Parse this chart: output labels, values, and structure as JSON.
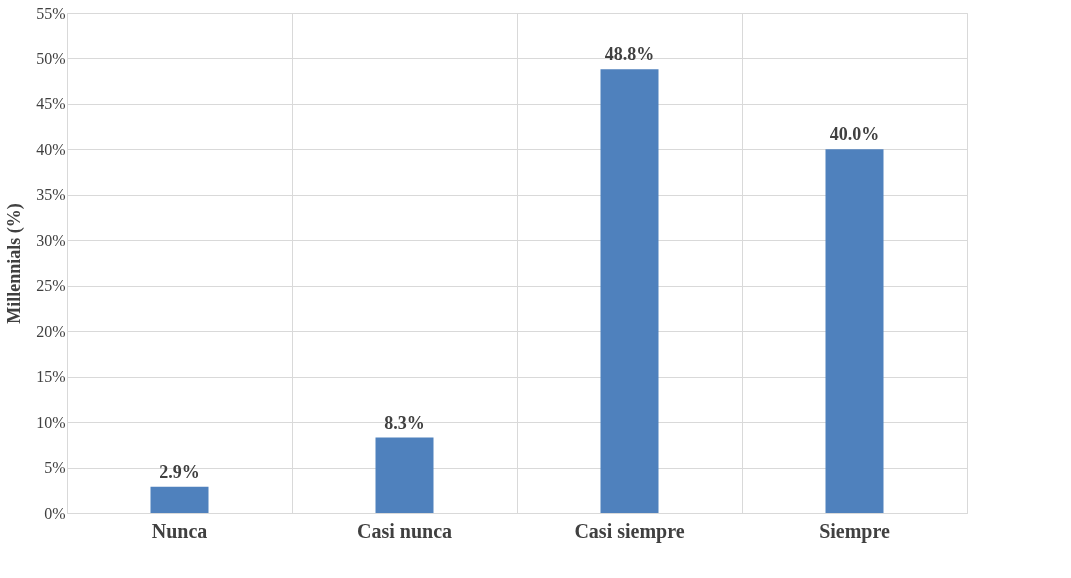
{
  "chart_data": {
    "type": "bar",
    "ylabel": "Millennials (%)",
    "categories": [
      "Nunca",
      "Casi nunca",
      "Casi siempre",
      "Siempre"
    ],
    "values": [
      2.9,
      8.3,
      48.8,
      40.0
    ],
    "color": "#4f81bd",
    "value_labels": [
      "2.9%",
      "8.3%",
      "48.8%",
      "40.0%"
    ],
    "ylim": [
      0,
      55
    ],
    "yticks": [
      {
        "value": 0,
        "label": "0%"
      },
      {
        "value": 5,
        "label": "5%"
      },
      {
        "value": 10,
        "label": "10%"
      },
      {
        "value": 15,
        "label": "15%"
      },
      {
        "value": 20,
        "label": "20%"
      },
      {
        "value": 25,
        "label": "25%"
      },
      {
        "value": 30,
        "label": "30%"
      },
      {
        "value": 35,
        "label": "35%"
      },
      {
        "value": 40,
        "label": "40%"
      },
      {
        "value": 45,
        "label": "45%"
      },
      {
        "value": 50,
        "label": "50%"
      },
      {
        "value": 55,
        "label": "55%"
      }
    ],
    "grid": true
  }
}
